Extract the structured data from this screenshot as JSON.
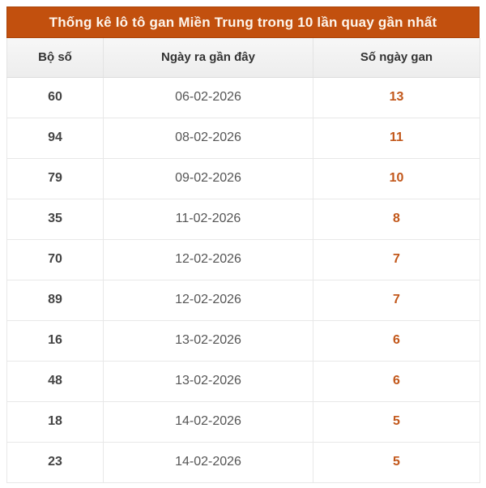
{
  "table": {
    "title": "Thống kê lô tô gan Miền Trung trong 10 lần quay gần nhất",
    "columns": [
      "Bộ số",
      "Ngày ra gần đây",
      "Số ngày gan"
    ],
    "rows": [
      {
        "number": "60",
        "last_date": "06-02-2026",
        "gan_days": "13"
      },
      {
        "number": "94",
        "last_date": "08-02-2026",
        "gan_days": "11"
      },
      {
        "number": "79",
        "last_date": "09-02-2026",
        "gan_days": "10"
      },
      {
        "number": "35",
        "last_date": "11-02-2026",
        "gan_days": "8"
      },
      {
        "number": "70",
        "last_date": "12-02-2026",
        "gan_days": "7"
      },
      {
        "number": "89",
        "last_date": "12-02-2026",
        "gan_days": "7"
      },
      {
        "number": "16",
        "last_date": "13-02-2026",
        "gan_days": "6"
      },
      {
        "number": "48",
        "last_date": "13-02-2026",
        "gan_days": "6"
      },
      {
        "number": "18",
        "last_date": "14-02-2026",
        "gan_days": "5"
      },
      {
        "number": "23",
        "last_date": "14-02-2026",
        "gan_days": "5"
      }
    ],
    "colors": {
      "header_background": "#c2500e",
      "header_text": "#fdf5ec",
      "gan_number_text": "#c2571a",
      "column_header_background": "#f0f0f0",
      "grid_border": "#e8e8e8"
    }
  }
}
